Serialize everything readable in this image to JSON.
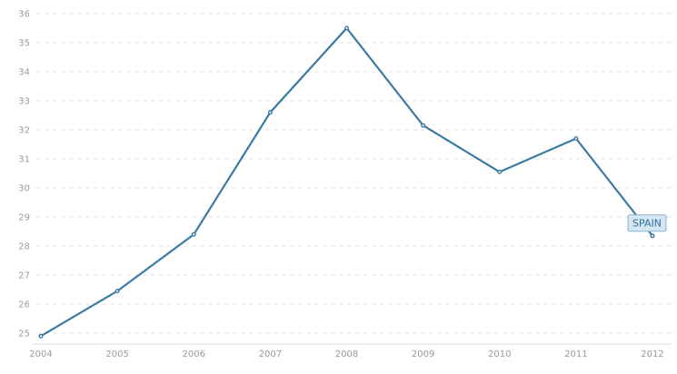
{
  "chart_data": {
    "type": "line",
    "x": [
      "2004",
      "2005",
      "2006",
      "2007",
      "2008",
      "2009",
      "2010",
      "2011",
      "2012"
    ],
    "series": [
      {
        "name": "SPAIN",
        "values": [
          24.9,
          26.45,
          28.4,
          32.6,
          35.5,
          32.15,
          30.55,
          31.7,
          28.35
        ],
        "color": "#3a7aa3"
      }
    ],
    "yticks": [
      25,
      26,
      27,
      28,
      29,
      30,
      31,
      32,
      33,
      34,
      35,
      36
    ],
    "ylim": [
      25,
      36
    ],
    "grid": true,
    "legend": "end-of-line label"
  }
}
